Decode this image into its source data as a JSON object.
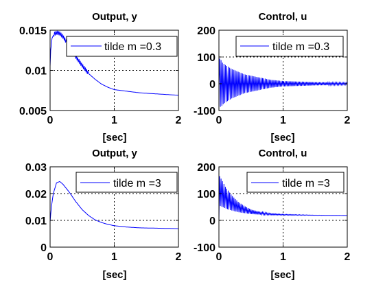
{
  "chart_data": [
    {
      "type": "line",
      "title": "Output, y",
      "xlabel": "[sec]",
      "ylabel": "",
      "xlim": [
        0,
        2
      ],
      "ylim": [
        0.005,
        0.015
      ],
      "xticks": [
        "0",
        "1",
        "2"
      ],
      "yticks": [
        "0.005",
        "0.01",
        "0.015"
      ],
      "grid": "dotted",
      "legend_position": "top-right",
      "series": [
        {
          "name": "tilde m =0.3",
          "color": "#0000ff",
          "x": [
            0,
            0.01,
            0.03,
            0.06,
            0.1,
            0.15,
            0.2,
            0.3,
            0.4,
            0.5,
            0.6,
            0.7,
            0.8,
            0.9,
            1.0,
            1.2,
            1.4,
            1.6,
            1.8,
            2.0
          ],
          "y": [
            0.0105,
            0.0125,
            0.014,
            0.0145,
            0.0147,
            0.0146,
            0.0142,
            0.013,
            0.0117,
            0.0106,
            0.0096,
            0.0089,
            0.0083,
            0.0079,
            0.0076,
            0.0074,
            0.0072,
            0.0071,
            0.007,
            0.0069
          ]
        }
      ]
    },
    {
      "type": "line",
      "title": "Control, u",
      "xlabel": "[sec]",
      "ylabel": "",
      "xlim": [
        0,
        2
      ],
      "ylim": [
        -100,
        200
      ],
      "xticks": [
        "0",
        "1",
        "2"
      ],
      "yticks": [
        "-100",
        "0",
        "100",
        "200"
      ],
      "grid": "dotted",
      "legend_position": "top-right",
      "series": [
        {
          "name": "tilde m =0.3",
          "color": "#0000ff",
          "x": [
            0,
            0.01,
            0.02,
            0.03,
            0.05,
            0.1,
            0.2,
            0.4,
            0.6,
            0.8,
            1.0,
            1.5,
            2.0
          ],
          "y": [
            0,
            95,
            -85,
            90,
            -80,
            70,
            55,
            35,
            25,
            15,
            10,
            6,
            4
          ],
          "oscillating_envelope": true
        }
      ]
    },
    {
      "type": "line",
      "title": "Output, y",
      "xlabel": "[sec]",
      "ylabel": "",
      "xlim": [
        0,
        2
      ],
      "ylim": [
        0,
        0.03
      ],
      "xticks": [
        "0",
        "1",
        "2"
      ],
      "yticks": [
        "0",
        "0.01",
        "0.02",
        "0.03"
      ],
      "grid": "dotted",
      "legend_position": "top-right",
      "series": [
        {
          "name": "tilde m =3",
          "color": "#0000ff",
          "x": [
            0,
            0.02,
            0.05,
            0.1,
            0.15,
            0.2,
            0.3,
            0.4,
            0.5,
            0.6,
            0.7,
            0.8,
            0.9,
            1.0,
            1.2,
            1.4,
            1.6,
            1.8,
            2.0
          ],
          "y": [
            0.0095,
            0.015,
            0.02,
            0.024,
            0.0245,
            0.0235,
            0.0205,
            0.017,
            0.014,
            0.0118,
            0.0102,
            0.0092,
            0.0085,
            0.008,
            0.0075,
            0.0072,
            0.0071,
            0.007,
            0.0069
          ]
        }
      ]
    },
    {
      "type": "line",
      "title": "Control, u",
      "xlabel": "[sec]",
      "ylabel": "",
      "xlim": [
        0,
        2
      ],
      "ylim": [
        -100,
        200
      ],
      "xticks": [
        "0",
        "1",
        "2"
      ],
      "yticks": [
        "-100",
        "0",
        "100",
        "200"
      ],
      "grid": "dotted",
      "legend_position": "top-right",
      "series": [
        {
          "name": "tilde m =3",
          "color": "#0000ff",
          "x": [
            0,
            0.01,
            0.03,
            0.05,
            0.1,
            0.2,
            0.3,
            0.4,
            0.5,
            0.6,
            0.8,
            1.0,
            1.5,
            2.0
          ],
          "y": [
            0,
            110,
            105,
            100,
            85,
            65,
            50,
            40,
            32,
            28,
            23,
            21,
            19,
            18
          ],
          "oscillating_envelope": true
        }
      ]
    }
  ]
}
